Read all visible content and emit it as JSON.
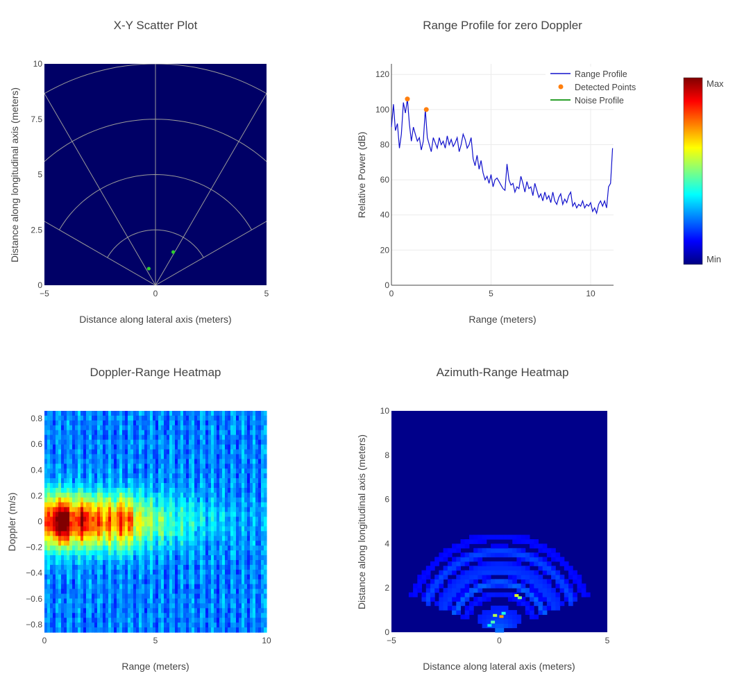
{
  "chart_data": [
    {
      "id": "xy",
      "type": "scatter",
      "title": "X-Y Scatter Plot",
      "xlabel": "Distance along lateral axis (meters)",
      "ylabel": "Distance along longitudinal axis (meters)",
      "xlim": [
        -5,
        5
      ],
      "ylim": [
        0,
        10
      ],
      "xticks": [
        -5,
        0,
        5
      ],
      "yticks": [
        0,
        2.5,
        5,
        7.5,
        10
      ],
      "xtick_labels": [
        "−5",
        "0",
        "5"
      ],
      "ytick_labels": [
        "0",
        "2.5",
        "5",
        "7.5",
        "10"
      ],
      "background": "#000066",
      "grid_color": "#9a9a9a",
      "polar_grid": {
        "range_rings": [
          2.5,
          5,
          7.5,
          10
        ],
        "spoke_angles_deg": [
          -60,
          -30,
          0,
          30,
          60
        ]
      },
      "series": [
        {
          "color": "#2ecc2e",
          "points": [
            [
              -0.3,
              0.75
            ],
            [
              0.8,
              1.5
            ]
          ]
        }
      ]
    },
    {
      "id": "rp",
      "type": "line",
      "title": "Range Profile for zero Doppler",
      "xlabel": "Range (meters)",
      "ylabel": "Relative Power (dB)",
      "xlim": [
        0,
        11.15
      ],
      "ylim": [
        0,
        126
      ],
      "xticks": [
        0,
        5,
        10
      ],
      "yticks": [
        0,
        20,
        40,
        60,
        80,
        100,
        120
      ],
      "xtick_labels": [
        "0",
        "5",
        "10"
      ],
      "ytick_labels": [
        "0",
        "20",
        "40",
        "60",
        "80",
        "100",
        "120"
      ],
      "legend_position": "top-right",
      "series": [
        {
          "name": "Range Profile",
          "color": "#1010cc",
          "kind": "line",
          "x": [
            0.0,
            0.1,
            0.2,
            0.3,
            0.4,
            0.5,
            0.6,
            0.7,
            0.8,
            0.9,
            1.0,
            1.1,
            1.2,
            1.3,
            1.4,
            1.5,
            1.6,
            1.7,
            1.8,
            1.9,
            2.0,
            2.1,
            2.2,
            2.3,
            2.4,
            2.5,
            2.6,
            2.7,
            2.8,
            2.9,
            3.0,
            3.1,
            3.2,
            3.3,
            3.4,
            3.5,
            3.6,
            3.7,
            3.8,
            3.9,
            4.0,
            4.1,
            4.2,
            4.3,
            4.4,
            4.5,
            4.6,
            4.7,
            4.8,
            4.9,
            5.0,
            5.1,
            5.2,
            5.3,
            5.4,
            5.5,
            5.6,
            5.7,
            5.8,
            5.9,
            6.0,
            6.1,
            6.2,
            6.3,
            6.4,
            6.5,
            6.6,
            6.7,
            6.8,
            6.9,
            7.0,
            7.1,
            7.2,
            7.3,
            7.4,
            7.5,
            7.6,
            7.7,
            7.8,
            7.9,
            8.0,
            8.1,
            8.2,
            8.3,
            8.4,
            8.5,
            8.6,
            8.7,
            8.8,
            8.9,
            9.0,
            9.1,
            9.2,
            9.3,
            9.4,
            9.5,
            9.6,
            9.7,
            9.8,
            9.9,
            10.0,
            10.1,
            10.2,
            10.3,
            10.4,
            10.5,
            10.6,
            10.7,
            10.8,
            10.9,
            11.0,
            11.1
          ],
          "y": [
            90,
            103,
            88,
            92,
            78,
            86,
            104,
            98,
            106,
            92,
            82,
            90,
            86,
            82,
            84,
            77,
            82,
            100,
            84,
            80,
            76,
            84,
            81,
            78,
            84,
            80,
            82,
            78,
            85,
            80,
            83,
            79,
            81,
            84,
            76,
            80,
            86,
            83,
            78,
            80,
            84,
            72,
            68,
            74,
            66,
            71,
            64,
            60,
            62,
            58,
            63,
            56,
            60,
            61,
            59,
            57,
            55,
            54,
            69,
            60,
            57,
            58,
            53,
            56,
            55,
            62,
            58,
            53,
            59,
            55,
            56,
            51,
            58,
            54,
            50,
            52,
            48,
            53,
            49,
            51,
            47,
            53,
            48,
            46,
            50,
            52,
            46,
            49,
            47,
            51,
            53,
            45,
            47,
            44,
            46,
            45,
            48,
            44,
            46,
            45,
            47,
            42,
            44,
            41,
            46,
            48,
            45,
            48,
            44,
            56,
            58,
            78
          ]
        },
        {
          "name": "Detected Points",
          "color": "#ff7f0e",
          "kind": "markers",
          "x": [
            0.8,
            1.75
          ],
          "y": [
            106,
            100
          ]
        },
        {
          "name": "Noise Profile",
          "color": "#2ca02c",
          "kind": "line",
          "x": [],
          "y": []
        }
      ]
    },
    {
      "id": "dr",
      "type": "heatmap",
      "title": "Doppler-Range Heatmap",
      "xlabel": "Range (meters)",
      "ylabel": "Doppler (m/s)",
      "xlim": [
        0,
        10
      ],
      "ylim": [
        -0.86,
        0.86
      ],
      "xticks": [
        0,
        5,
        10
      ],
      "yticks": [
        -0.8,
        -0.6,
        -0.4,
        -0.2,
        0,
        0.2,
        0.4,
        0.6,
        0.8
      ],
      "xtick_labels": [
        "0",
        "5",
        "10"
      ],
      "ytick_labels": [
        "−0.8",
        "−0.6",
        "−0.4",
        "−0.2",
        "0",
        "0.2",
        "0.4",
        "0.6",
        "0.8"
      ],
      "colorscale": "jet"
    },
    {
      "id": "ar",
      "type": "heatmap",
      "title": "Azimuth-Range Heatmap",
      "xlabel": "Distance along lateral axis (meters)",
      "ylabel": "Distance along longitudinal axis (meters)",
      "xlim": [
        -5,
        5
      ],
      "ylim": [
        0,
        10
      ],
      "xticks": [
        -5,
        0,
        5
      ],
      "yticks": [
        0,
        2,
        4,
        6,
        8,
        10
      ],
      "xtick_labels": [
        "−5",
        "0",
        "5"
      ],
      "ytick_labels": [
        "0",
        "2",
        "4",
        "6",
        "8",
        "10"
      ],
      "colorscale": "jet"
    }
  ],
  "colorbar": {
    "max_label": "Max",
    "min_label": "Min"
  }
}
